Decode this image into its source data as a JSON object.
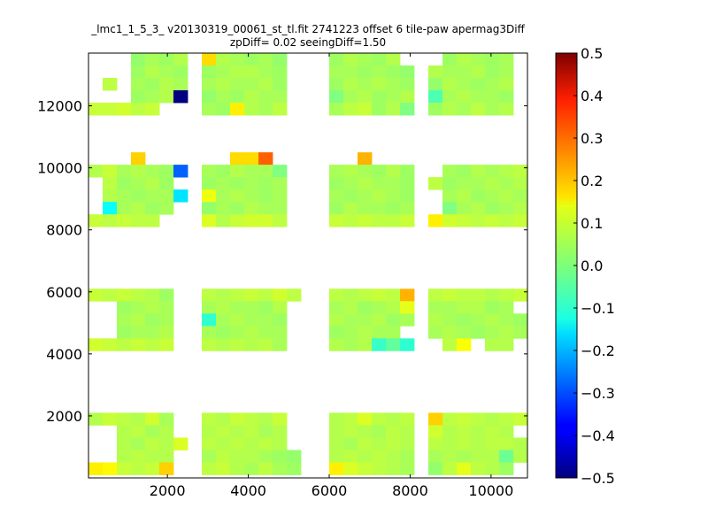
{
  "chart_data": {
    "type": "heatmap",
    "title_line1": "_lmc1_1_5_3_ v20130319_00061_st_tl.fit 2741223 offset 6 tile-paw apermag3Diff",
    "title_line2": "zpDiff= 0.02 seeingDiff=1.50",
    "xlabel": "",
    "ylabel": "",
    "xlim": [
      50,
      10900
    ],
    "ylim": [
      0,
      13700
    ],
    "x_ticks": [
      2000,
      4000,
      6000,
      8000,
      10000
    ],
    "y_ticks": [
      2000,
      4000,
      6000,
      8000,
      10000,
      12000
    ],
    "x_tick_labels": [
      "2000",
      "4000",
      "6000",
      "8000",
      "10000"
    ],
    "y_tick_labels": [
      "2000",
      "4000",
      "6000",
      "8000",
      "10000",
      "12000"
    ],
    "colorbar": {
      "colormap": "jet",
      "range": [
        -0.5,
        0.5
      ],
      "ticks": [
        0.5,
        0.4,
        0.3,
        0.2,
        0.1,
        0.0,
        -0.1,
        -0.2,
        -0.3,
        -0.4,
        -0.5
      ],
      "tick_labels": [
        "0.5",
        "0.4",
        "0.3",
        "0.2",
        "0.1",
        "0.0",
        "−0.1",
        "−0.2",
        "−0.3",
        "−0.4",
        "−0.5"
      ]
    },
    "cell_size": [
      350,
      400
    ],
    "x_columns": [
      50,
      400,
      750,
      1100,
      1450,
      1800,
      2150,
      2500,
      2850,
      3200,
      3550,
      3900,
      4250,
      4600,
      4950,
      5300,
      5650,
      6000,
      6350,
      6700,
      7050,
      7400,
      7750,
      8100,
      8450,
      8800,
      9150,
      9500,
      9850,
      10200,
      10550
    ],
    "y_rows_top_down": [
      13700,
      13300,
      12900,
      12500,
      12100,
      11700,
      11300,
      10900,
      10500,
      10100,
      9700,
      9300,
      8900,
      8500,
      8100,
      7700,
      7300,
      6900,
      6500,
      6100,
      5700,
      5300,
      4900,
      4500,
      4100,
      3700,
      3300,
      2900,
      2500,
      2100,
      1700,
      1300,
      900,
      500
    ],
    "values_grid_note": "rows top-down, columns left-right; null = empty",
    "values": [
      [
        null,
        null,
        null,
        0.02,
        0.04,
        0.03,
        0.05,
        null,
        0.16,
        0.05,
        0.04,
        0.03,
        0.04,
        0.02,
        null,
        null,
        null,
        0.03,
        0.05,
        0.04,
        0.03,
        0.05,
        null,
        null,
        null,
        0.03,
        0.05,
        0.04,
        0.03,
        0.04,
        null
      ],
      [
        null,
        null,
        null,
        0.03,
        0.05,
        0.04,
        0.03,
        null,
        0.03,
        0.04,
        0.05,
        0.05,
        0.04,
        0.03,
        null,
        null,
        null,
        0.04,
        0.04,
        0.03,
        0.04,
        0.03,
        0.02,
        null,
        0.05,
        0.04,
        0.04,
        0.05,
        0.03,
        0.04,
        null
      ],
      [
        null,
        0.06,
        null,
        0.04,
        0.03,
        0.05,
        0.04,
        null,
        0.04,
        0.05,
        0.04,
        0.04,
        0.05,
        0.03,
        null,
        null,
        null,
        0.03,
        0.05,
        0.04,
        0.05,
        0.04,
        0.03,
        null,
        0.02,
        0.05,
        0.04,
        0.03,
        0.04,
        0.05,
        null
      ],
      [
        null,
        null,
        null,
        0.03,
        0.04,
        0.05,
        -0.5,
        null,
        0.02,
        0.04,
        0.03,
        0.05,
        0.04,
        0.04,
        null,
        null,
        null,
        0.0,
        0.04,
        0.05,
        0.03,
        0.04,
        0.05,
        null,
        -0.05,
        0.04,
        0.05,
        0.04,
        0.04,
        0.03,
        null
      ],
      [
        0.07,
        0.07,
        0.08,
        0.06,
        0.07,
        null,
        null,
        null,
        0.04,
        0.03,
        0.14,
        0.05,
        0.04,
        0.06,
        null,
        null,
        null,
        0.04,
        0.06,
        0.07,
        0.03,
        0.05,
        0.0,
        null,
        0.03,
        0.05,
        0.04,
        0.06,
        0.04,
        0.05,
        null
      ],
      [
        null,
        null,
        null,
        null,
        null,
        null,
        null,
        null,
        null,
        null,
        null,
        null,
        null,
        null,
        null,
        null,
        null,
        null,
        null,
        null,
        null,
        null,
        null,
        null,
        null,
        null,
        null,
        null,
        null,
        null,
        null
      ],
      [
        null,
        null,
        null,
        null,
        null,
        null,
        null,
        null,
        null,
        null,
        null,
        null,
        null,
        null,
        null,
        null,
        null,
        null,
        null,
        null,
        null,
        null,
        null,
        null,
        null,
        null,
        null,
        null,
        null,
        null,
        null
      ],
      [
        null,
        null,
        null,
        null,
        null,
        null,
        null,
        null,
        null,
        null,
        null,
        null,
        null,
        null,
        null,
        null,
        null,
        null,
        null,
        null,
        null,
        null,
        null,
        null,
        null,
        null,
        null,
        null,
        null,
        null,
        null
      ],
      [
        null,
        null,
        null,
        0.17,
        null,
        null,
        null,
        null,
        null,
        null,
        0.16,
        0.16,
        0.28,
        null,
        null,
        null,
        null,
        null,
        null,
        0.2,
        null,
        null,
        null,
        null,
        null,
        null,
        null,
        null,
        null,
        null,
        null
      ],
      [
        0.05,
        0.07,
        0.04,
        0.05,
        0.04,
        0.03,
        -0.28,
        null,
        0.04,
        0.03,
        0.05,
        0.04,
        0.04,
        0.0,
        null,
        null,
        null,
        0.04,
        0.05,
        0.04,
        0.03,
        0.05,
        0.03,
        null,
        null,
        0.04,
        0.03,
        0.05,
        0.04,
        0.05,
        0.06
      ],
      [
        null,
        0.06,
        0.03,
        0.04,
        0.05,
        0.03,
        null,
        null,
        0.03,
        0.04,
        0.03,
        0.04,
        0.03,
        0.04,
        null,
        null,
        null,
        0.03,
        0.04,
        0.05,
        0.04,
        0.04,
        0.03,
        null,
        0.06,
        0.03,
        0.04,
        0.04,
        0.05,
        0.04,
        0.05
      ],
      [
        null,
        0.05,
        0.04,
        0.03,
        0.04,
        0.04,
        -0.15,
        null,
        0.11,
        0.04,
        0.05,
        0.04,
        0.03,
        0.04,
        null,
        null,
        null,
        0.04,
        0.03,
        0.04,
        0.05,
        0.04,
        0.03,
        null,
        null,
        0.04,
        0.05,
        0.03,
        0.04,
        0.05,
        0.04
      ],
      [
        null,
        -0.12,
        0.04,
        0.05,
        0.03,
        0.04,
        null,
        null,
        0.02,
        0.04,
        0.03,
        0.05,
        0.04,
        0.04,
        null,
        null,
        null,
        0.03,
        0.05,
        0.04,
        0.04,
        0.03,
        0.04,
        null,
        null,
        0.0,
        0.04,
        0.05,
        0.03,
        0.04,
        0.05
      ],
      [
        0.07,
        0.06,
        0.07,
        0.06,
        0.06,
        null,
        null,
        null,
        0.09,
        0.05,
        0.07,
        0.08,
        0.08,
        0.06,
        null,
        null,
        null,
        0.07,
        0.06,
        0.07,
        0.06,
        0.06,
        0.07,
        null,
        0.14,
        0.08,
        0.07,
        0.06,
        0.07,
        0.06,
        0.07
      ],
      [
        null,
        null,
        null,
        null,
        null,
        null,
        null,
        null,
        null,
        null,
        null,
        null,
        null,
        null,
        null,
        null,
        null,
        null,
        null,
        null,
        null,
        null,
        null,
        null,
        null,
        null,
        null,
        null,
        null,
        null,
        null
      ],
      [
        null,
        null,
        null,
        null,
        null,
        null,
        null,
        null,
        null,
        null,
        null,
        null,
        null,
        null,
        null,
        null,
        null,
        null,
        null,
        null,
        null,
        null,
        null,
        null,
        null,
        null,
        null,
        null,
        null,
        null,
        null
      ],
      [
        null,
        null,
        null,
        null,
        null,
        null,
        null,
        null,
        null,
        null,
        null,
        null,
        null,
        null,
        null,
        null,
        null,
        null,
        null,
        null,
        null,
        null,
        null,
        null,
        null,
        null,
        null,
        null,
        null,
        null,
        null
      ],
      [
        null,
        null,
        null,
        null,
        null,
        null,
        null,
        null,
        null,
        null,
        null,
        null,
        null,
        null,
        null,
        null,
        null,
        null,
        null,
        null,
        null,
        null,
        null,
        null,
        null,
        null,
        null,
        null,
        null,
        null,
        null
      ],
      [
        null,
        null,
        null,
        null,
        null,
        null,
        null,
        null,
        null,
        null,
        null,
        null,
        null,
        null,
        null,
        null,
        null,
        null,
        null,
        null,
        null,
        null,
        null,
        null,
        null,
        null,
        null,
        null,
        null,
        null,
        null
      ],
      [
        0.07,
        0.06,
        0.07,
        0.06,
        0.05,
        0.03,
        null,
        null,
        0.06,
        0.05,
        0.06,
        0.07,
        0.06,
        0.08,
        0.06,
        null,
        null,
        0.06,
        0.05,
        0.06,
        0.07,
        0.06,
        0.2,
        null,
        0.06,
        0.07,
        0.06,
        0.06,
        0.05,
        0.06,
        0.07
      ],
      [
        null,
        null,
        0.03,
        0.04,
        0.05,
        0.04,
        null,
        null,
        0.04,
        0.05,
        0.04,
        0.04,
        0.03,
        0.05,
        null,
        null,
        null,
        0.04,
        0.05,
        0.03,
        0.04,
        0.05,
        0.1,
        null,
        0.04,
        0.04,
        0.05,
        0.05,
        0.03,
        0.04,
        null
      ],
      [
        null,
        null,
        0.04,
        0.05,
        0.03,
        0.04,
        null,
        null,
        -0.08,
        0.04,
        0.05,
        0.04,
        0.04,
        0.03,
        null,
        null,
        null,
        0.05,
        0.04,
        0.04,
        0.05,
        0.03,
        0.04,
        null,
        0.05,
        0.04,
        0.03,
        0.04,
        0.05,
        0.04,
        0.03
      ],
      [
        null,
        null,
        0.03,
        0.04,
        0.04,
        0.05,
        null,
        null,
        0.04,
        0.03,
        0.04,
        0.05,
        0.04,
        0.04,
        null,
        null,
        null,
        0.03,
        0.04,
        0.05,
        0.04,
        0.04,
        null,
        null,
        0.04,
        0.05,
        0.04,
        0.03,
        0.04,
        0.05,
        0.04
      ],
      [
        0.08,
        0.07,
        0.06,
        0.07,
        0.06,
        0.07,
        null,
        null,
        0.06,
        0.05,
        0.06,
        0.05,
        0.06,
        0.04,
        null,
        null,
        null,
        0.05,
        0.04,
        0.05,
        -0.07,
        -0.03,
        -0.08,
        null,
        null,
        0.06,
        0.12,
        null,
        0.05,
        0.05,
        null
      ],
      [
        null,
        null,
        null,
        null,
        null,
        null,
        null,
        null,
        null,
        null,
        null,
        null,
        null,
        null,
        null,
        null,
        null,
        null,
        null,
        null,
        null,
        null,
        null,
        null,
        null,
        null,
        null,
        null,
        null,
        null,
        null
      ],
      [
        null,
        null,
        null,
        null,
        null,
        null,
        null,
        null,
        null,
        null,
        null,
        null,
        null,
        null,
        null,
        null,
        null,
        null,
        null,
        null,
        null,
        null,
        null,
        null,
        null,
        null,
        null,
        null,
        null,
        null,
        null
      ],
      [
        null,
        null,
        null,
        null,
        null,
        null,
        null,
        null,
        null,
        null,
        null,
        null,
        null,
        null,
        null,
        null,
        null,
        null,
        null,
        null,
        null,
        null,
        null,
        null,
        null,
        null,
        null,
        null,
        null,
        null,
        null
      ],
      [
        null,
        null,
        null,
        null,
        null,
        null,
        null,
        null,
        null,
        null,
        null,
        null,
        null,
        null,
        null,
        null,
        null,
        null,
        null,
        null,
        null,
        null,
        null,
        null,
        null,
        null,
        null,
        null,
        null,
        null,
        null
      ],
      [
        null,
        null,
        null,
        null,
        null,
        null,
        null,
        null,
        null,
        null,
        null,
        null,
        null,
        null,
        null,
        null,
        null,
        null,
        null,
        null,
        null,
        null,
        null,
        null,
        null,
        null,
        null,
        null,
        null,
        null,
        null
      ],
      [
        0.05,
        0.07,
        0.06,
        0.05,
        0.08,
        0.04,
        null,
        null,
        0.06,
        0.05,
        0.07,
        0.06,
        0.05,
        0.07,
        null,
        null,
        null,
        0.05,
        0.06,
        0.09,
        0.06,
        0.05,
        0.06,
        null,
        0.17,
        0.06,
        0.07,
        0.06,
        0.05,
        0.06,
        0.07
      ],
      [
        null,
        null,
        0.05,
        0.06,
        0.04,
        0.05,
        null,
        null,
        0.05,
        0.06,
        0.05,
        0.06,
        0.04,
        0.05,
        null,
        null,
        null,
        0.05,
        0.06,
        0.05,
        0.04,
        0.06,
        0.05,
        null,
        0.08,
        0.05,
        0.06,
        0.05,
        0.06,
        0.05,
        null
      ],
      [
        null,
        null,
        0.05,
        0.04,
        0.06,
        0.05,
        0.09,
        null,
        0.06,
        0.05,
        0.06,
        0.05,
        0.06,
        0.05,
        null,
        null,
        null,
        0.05,
        0.04,
        0.06,
        0.05,
        0.06,
        0.05,
        null,
        0.06,
        0.05,
        0.06,
        0.05,
        0.06,
        0.06,
        0.05
      ],
      [
        null,
        null,
        0.05,
        0.06,
        0.05,
        0.05,
        null,
        null,
        0.04,
        0.06,
        0.05,
        0.05,
        0.04,
        0.03,
        0.02,
        null,
        null,
        0.05,
        0.06,
        0.05,
        0.06,
        0.05,
        0.04,
        null,
        0.04,
        0.05,
        0.04,
        0.05,
        0.05,
        -0.02,
        0.05
      ],
      [
        0.14,
        0.13,
        0.07,
        0.06,
        0.07,
        0.17,
        null,
        null,
        0.06,
        0.07,
        0.05,
        0.04,
        0.06,
        0.04,
        0.03,
        null,
        null,
        0.14,
        0.09,
        0.07,
        0.06,
        0.05,
        0.04,
        null,
        0.02,
        0.06,
        0.1,
        0.06,
        0.05,
        0.03,
        null
      ]
    ]
  }
}
